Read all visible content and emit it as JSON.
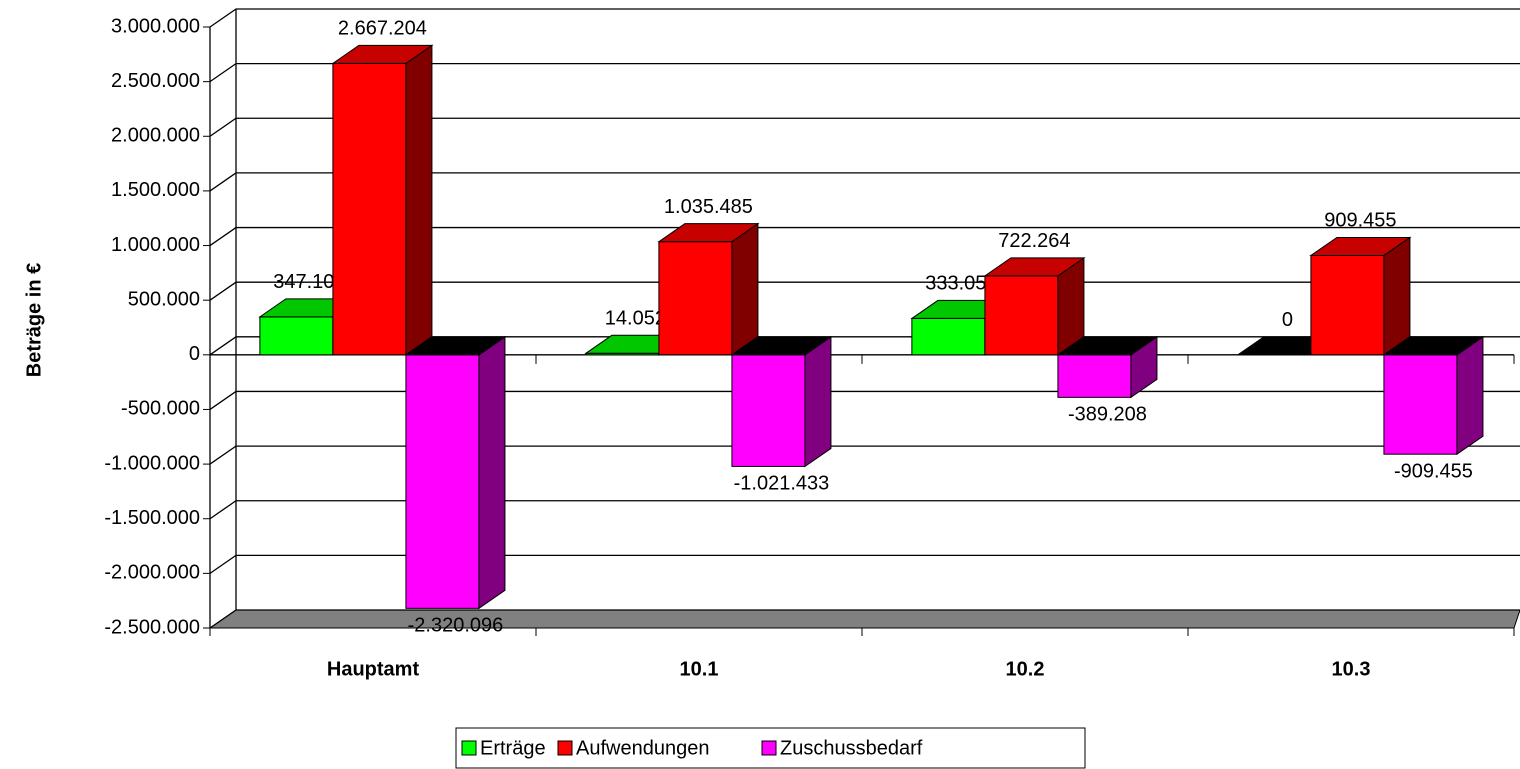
{
  "chart_data": {
    "type": "bar",
    "y_label": "Beträge in €",
    "categories": [
      "Hauptamt",
      "10.1",
      "10.2",
      "10.3"
    ],
    "series": [
      {
        "name": "Erträge",
        "color": "#00ff00",
        "values": [
          347108,
          14052,
          333056,
          0
        ],
        "value_labels": [
          "347.108",
          "14.052",
          "333.056",
          "0"
        ]
      },
      {
        "name": "Aufwendungen",
        "color": "#ff0000",
        "values": [
          2667204,
          1035485,
          722264,
          909455
        ],
        "value_labels": [
          "2.667.204",
          "1.035.485",
          "722.264",
          "909.455"
        ]
      },
      {
        "name": "Zuschussbedarf",
        "color": "#ff00ff",
        "values": [
          -2320096,
          -1021433,
          -389208,
          -909455
        ],
        "value_labels": [
          "-2.320.096",
          "-1.021.433",
          "-389.208",
          "-909.455"
        ]
      }
    ],
    "ylim": [
      -2500000,
      3000000
    ],
    "yticks": [
      {
        "value": 3000000,
        "label": "3.000.000"
      },
      {
        "value": 2500000,
        "label": "2.500.000"
      },
      {
        "value": 2000000,
        "label": "2.000.000"
      },
      {
        "value": 1500000,
        "label": "1.500.000"
      },
      {
        "value": 1000000,
        "label": "1.000.000"
      },
      {
        "value": 500000,
        "label": "500.000"
      },
      0,
      {
        "value": -500000,
        "label": "-500.000"
      },
      {
        "value": -1000000,
        "label": "-1.000.000"
      },
      {
        "value": -1500000,
        "label": "-1.500.000"
      },
      {
        "value": -2000000,
        "label": "-2.000.000"
      },
      {
        "value": -2500000,
        "label": "-2.500.000"
      }
    ],
    "grid": true,
    "legend": "bottom"
  }
}
